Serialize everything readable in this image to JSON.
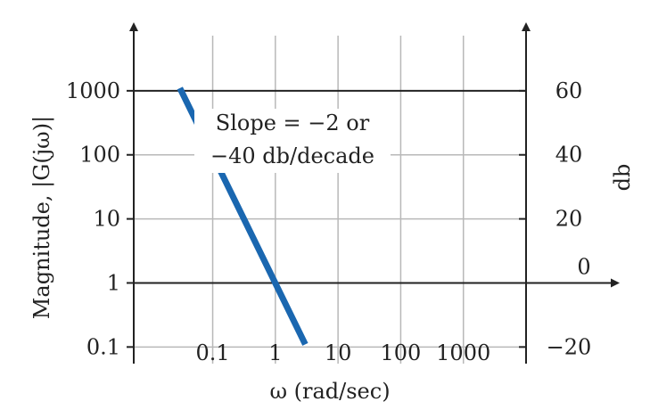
{
  "chart_data": {
    "type": "line",
    "title": "",
    "xlabel": "ω (rad/sec)",
    "ylabel": "Magnitude, |G(jω)|",
    "y2label": "db",
    "x_scale": "log",
    "y_scale": "log",
    "x_ticks": [
      {
        "value": 0.1,
        "label": "0.1"
      },
      {
        "value": 1,
        "label": "1"
      },
      {
        "value": 10,
        "label": "10"
      },
      {
        "value": 100,
        "label": "100"
      },
      {
        "value": 1000,
        "label": "1000"
      }
    ],
    "y_ticks": [
      {
        "value": 0.1,
        "label": "0.1"
      },
      {
        "value": 1,
        "label": "1"
      },
      {
        "value": 10,
        "label": "10"
      },
      {
        "value": 100,
        "label": "100"
      },
      {
        "value": 1000,
        "label": "1000"
      }
    ],
    "y2_ticks": [
      {
        "value": -20,
        "label": "−20"
      },
      {
        "value": 0,
        "label": "0"
      },
      {
        "value": 20,
        "label": "20"
      },
      {
        "value": 40,
        "label": "40"
      },
      {
        "value": 60,
        "label": "60"
      }
    ],
    "xlim": [
      0.0055,
      10000
    ],
    "ylim": [
      0.055,
      10000
    ],
    "grid": true,
    "series": [
      {
        "x": [
          0.03,
          3
        ],
        "y": [
          1100,
          0.11
        ],
        "color": "#1a67b0"
      }
    ],
    "annotation": {
      "lines": [
        "Slope = −2 or",
        "−40 db/decade"
      ]
    }
  }
}
